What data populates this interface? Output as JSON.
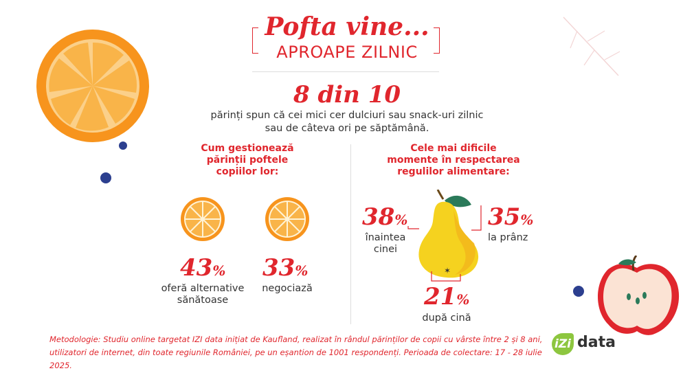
{
  "title": {
    "line1": "Pofta vine...",
    "line2": "APROAPE ZILNIC"
  },
  "headline": {
    "stat": "8 din 10",
    "text": "părinți spun că cei mici cer dulciuri sau snack-uri zilnic sau de câteva ori pe săptămână."
  },
  "left": {
    "title": [
      "Cum gestionează",
      "părinții poftele",
      "copiilor lor:"
    ],
    "stats": [
      {
        "value": "43",
        "unit": "%",
        "label": [
          "oferă alternative",
          "sănătoase"
        ]
      },
      {
        "value": "33",
        "unit": "%",
        "label": [
          "negociază"
        ]
      }
    ]
  },
  "right": {
    "title": [
      "Cele mai dificile",
      "momente în respectarea",
      "regulilor alimentare:"
    ],
    "stats": [
      {
        "value": "38",
        "unit": "%",
        "label": [
          "înaintea",
          "cinei"
        ]
      },
      {
        "value": "35",
        "unit": "%",
        "label": [
          "la prânz"
        ]
      },
      {
        "value": "21",
        "unit": "%",
        "label": [
          "după cină"
        ]
      }
    ]
  },
  "methodology": [
    "Metodologie: Studiu online targetat IZI data inițiat de Kaufland, realizat în rândul părinților de copii cu vârste între 2 și 8 ani,",
    "utilizatori de internet, din toate regiunile României, pe un eșantion de 1001 respondenți. Perioada de colectare: 17 - 28 iulie 2025."
  ],
  "logo": {
    "mark": "iZi",
    "word": "data"
  },
  "colors": {
    "accent": "#e0262d",
    "orange": "#f7941d",
    "pear": "#f5d21f",
    "blueberry": "#2c3f8f"
  },
  "icons": [
    "orange-slice-icon",
    "pear-icon",
    "apple-half-icon",
    "blueberry-icon"
  ]
}
